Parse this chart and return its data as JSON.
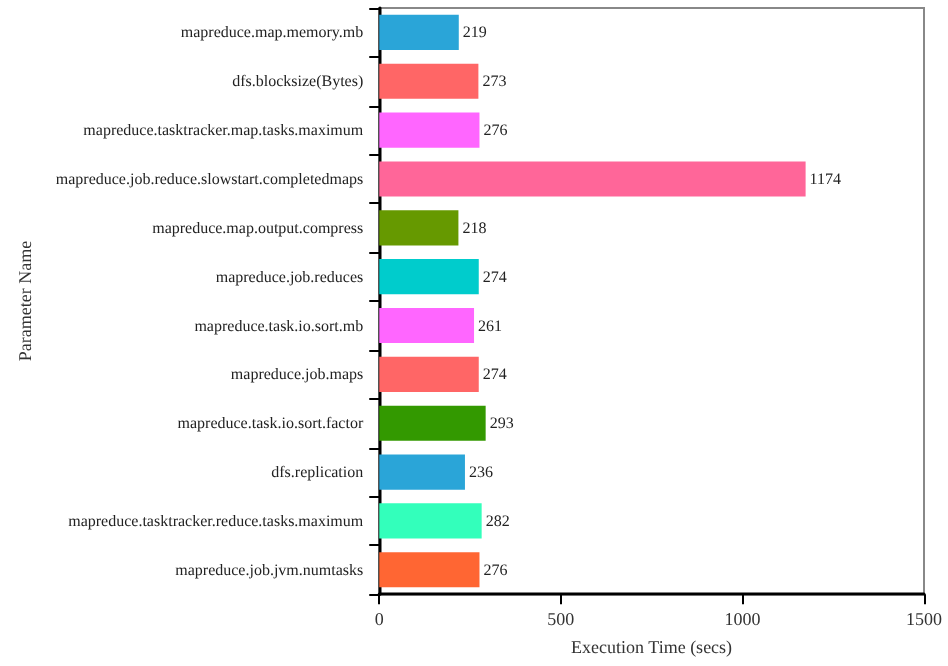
{
  "chart_data": {
    "type": "bar",
    "orientation": "horizontal",
    "xlabel": "Execution Time (secs)",
    "ylabel": "Parameter Name",
    "categories": [
      "mapreduce.map.memory.mb",
      "dfs.blocksize(Bytes)",
      "mapreduce.tasktracker.map.tasks.maximum",
      "mapreduce.job.reduce.slowstart.completedmaps",
      "mapreduce.map.output.compress",
      "mapreduce.job.reduces",
      "mapreduce.task.io.sort.mb",
      "mapreduce.job.maps",
      "mapreduce.task.io.sort.factor",
      "dfs.replication",
      "mapreduce.tasktracker.reduce.tasks.maximum",
      "mapreduce.job.jvm.numtasks"
    ],
    "values": [
      219,
      273,
      276,
      1174,
      218,
      274,
      261,
      274,
      293,
      236,
      282,
      276
    ],
    "colors": [
      "#2aa5d8",
      "#ff6666",
      "#ff66ff",
      "#ff6699",
      "#669900",
      "#00cccc",
      "#ff66ff",
      "#ff6666",
      "#339900",
      "#2aa5d8",
      "#33ffbb",
      "#ff6633"
    ],
    "xlim": [
      0,
      1500
    ],
    "xticks": [
      0,
      500,
      1000,
      1500
    ],
    "data_labels": true,
    "grid": false
  }
}
